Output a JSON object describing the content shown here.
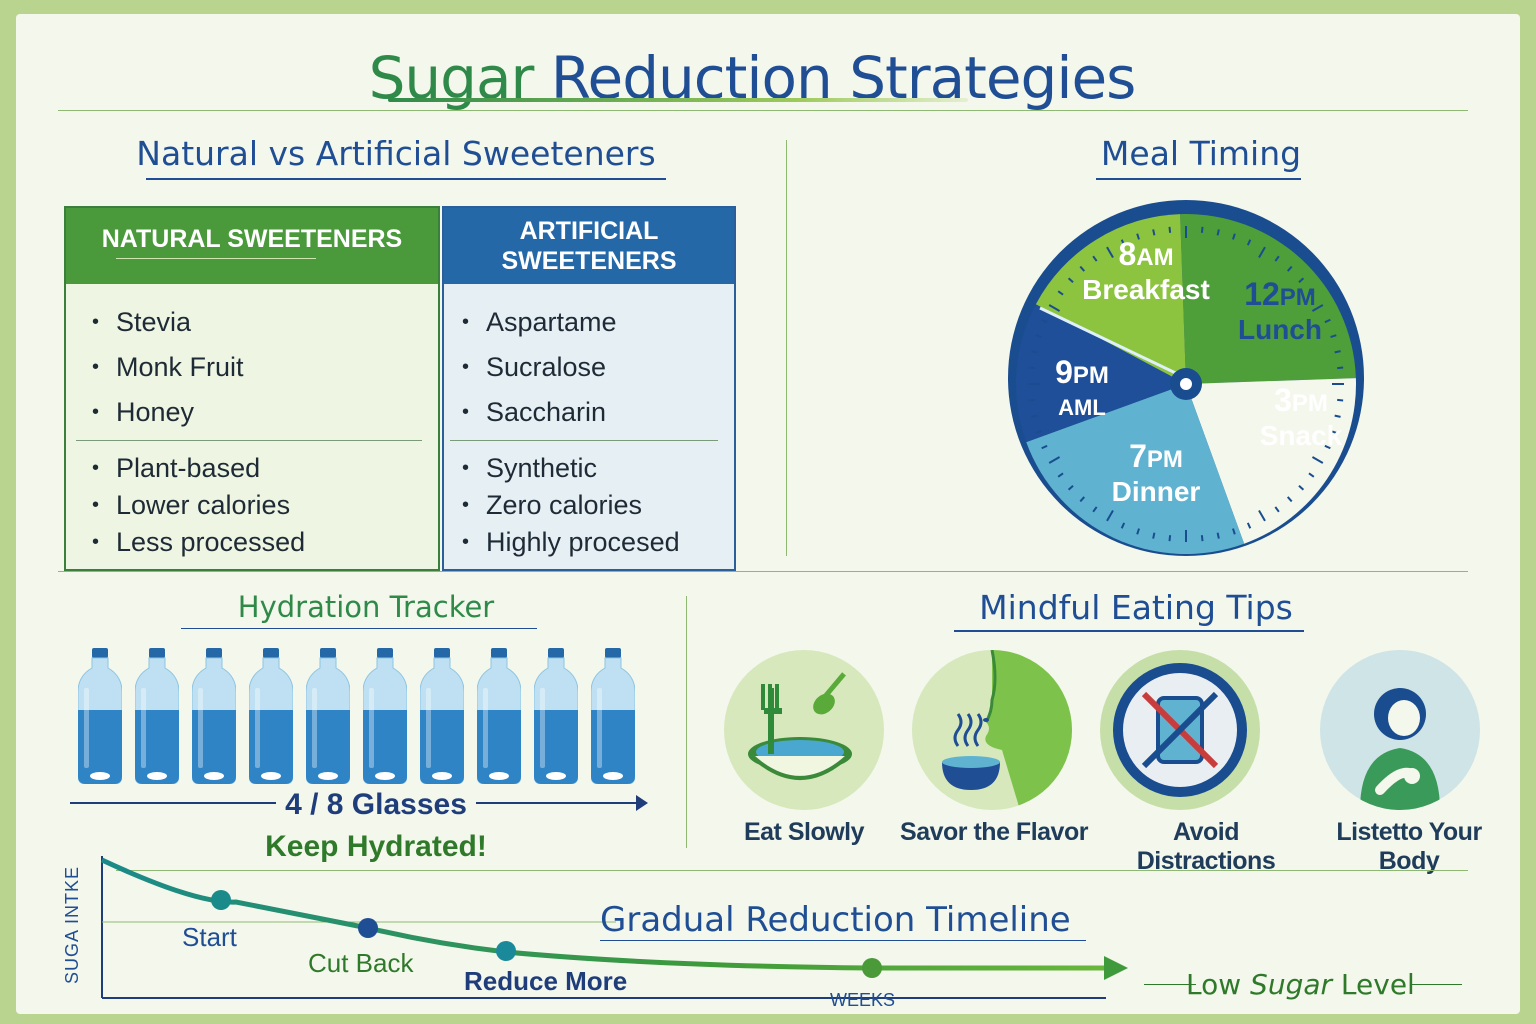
{
  "title": {
    "part1": "Sugar",
    "part2": " Reduction Strategies"
  },
  "sweeteners": {
    "heading": "Natural vs Artificial Sweeteners",
    "natural": {
      "header": "NATURAL SWEETENERS",
      "examples": [
        "Stevia",
        "Monk Fruit",
        "Honey"
      ],
      "traits": [
        "Plant-based",
        "Lower calories",
        "Less processed"
      ]
    },
    "artificial": {
      "header_line1": "ARTIFICIAL",
      "header_line2": "SWEETENERS",
      "examples": [
        "Aspartame",
        "Sucralose",
        "Saccharin"
      ],
      "traits": [
        "Synthetic",
        "Zero calories",
        "Highly procesed"
      ]
    }
  },
  "meal_timing": {
    "heading": "Meal Timing",
    "slices": [
      {
        "time": "8",
        "suffix": "AM",
        "name": "Breakfast",
        "color": "#4e9e3a"
      },
      {
        "time": "12",
        "suffix": "PM",
        "name": "Lunch",
        "color": "#f4f7ec"
      },
      {
        "time": "3",
        "suffix": "PM",
        "name": "Snack",
        "color": "#5fb3d1"
      },
      {
        "time": "7",
        "suffix": "PM",
        "name": "Dinner",
        "color": "#1f4f98"
      },
      {
        "time": "9",
        "suffix": "PM",
        "name": "AML",
        "color": "#8cc43f"
      }
    ]
  },
  "hydration": {
    "heading": "Hydration Tracker",
    "bottle_count": 10,
    "count_text": "4 / 8 Glasses",
    "message": "Keep Hydrated!"
  },
  "mindful": {
    "heading": "Mindful Eating Tips",
    "tips": [
      {
        "label": "Eat Slowly",
        "icon": "fork-bowl-icon"
      },
      {
        "label": "Savor the Flavor",
        "icon": "smell-bowl-icon"
      },
      {
        "label": "Avoid Distractions",
        "icon": "no-phone-icon"
      },
      {
        "label": "Listetto Your Body",
        "icon": "person-stomach-icon"
      }
    ]
  },
  "timeline": {
    "heading": "Gradual Reduction Timeline",
    "y_label": "SUGA INTKE",
    "x_label": "WEEKS",
    "points": [
      {
        "label": "Start"
      },
      {
        "label": "Cut Back"
      },
      {
        "label": "Reduce More"
      },
      {
        "label": ""
      }
    ],
    "end_label_part1": "Low ",
    "end_label_part2": "Sugar",
    "end_label_part3": " Level"
  }
}
